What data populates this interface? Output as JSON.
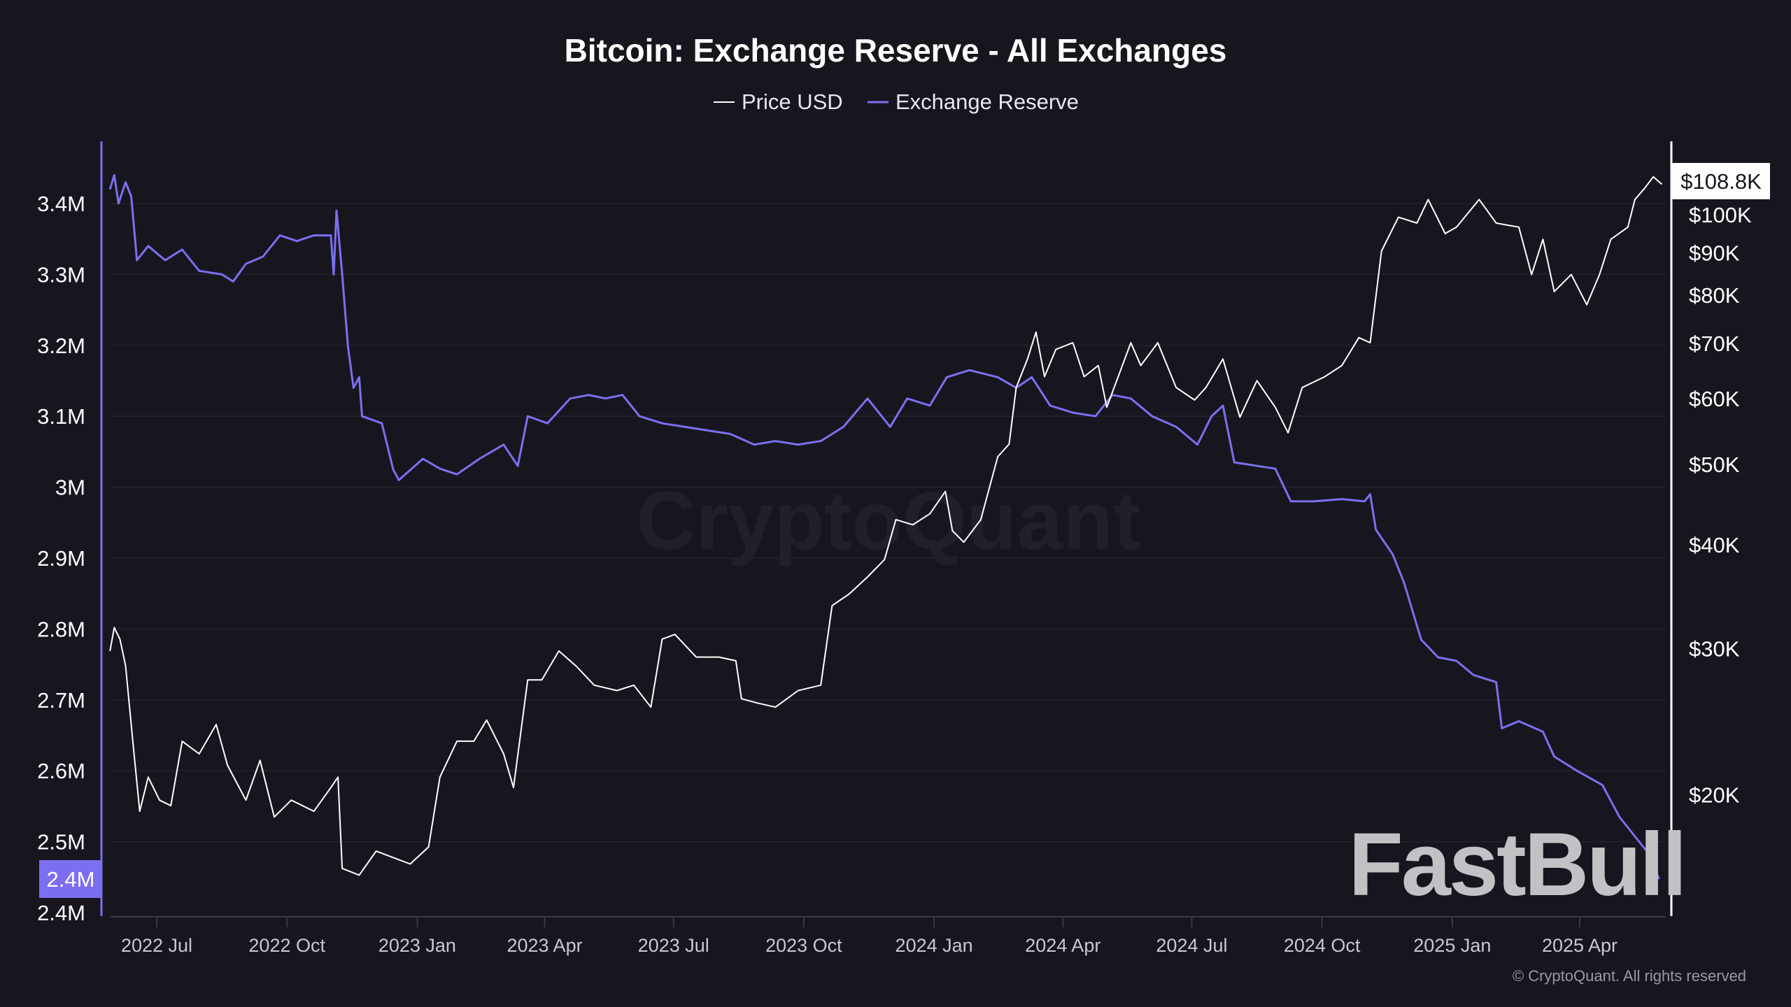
{
  "chart_data": {
    "type": "line",
    "title": "Bitcoin: Exchange Reserve - All Exchanges",
    "legend": {
      "placement": "top-center",
      "entries": [
        "Price USD",
        "Exchange Reserve"
      ]
    },
    "grid": true,
    "x_ticks": [
      "2022 Jul",
      "2022 Oct",
      "2023 Jan",
      "2023 Apr",
      "2023 Jul",
      "2023 Oct",
      "2024 Jan",
      "2024 Apr",
      "2024 Jul",
      "2024 Oct",
      "2025 Jan",
      "2025 Apr"
    ],
    "x_tick_dates": [
      "2022-07-01",
      "2022-10-01",
      "2023-01-01",
      "2023-04-01",
      "2023-07-01",
      "2023-10-01",
      "2024-01-01",
      "2024-04-01",
      "2024-07-01",
      "2024-10-01",
      "2025-01-01",
      "2025-04-01"
    ],
    "xlim": [
      "2022-05-29",
      "2025-05-29"
    ],
    "left_axis": {
      "ticks": [
        "3.4M",
        "3.3M",
        "3.2M",
        "3.1M",
        "3M",
        "2.9M",
        "2.8M",
        "2.7M",
        "2.6M",
        "2.5M",
        "2.4M"
      ],
      "tick_values": [
        3.4,
        3.3,
        3.2,
        3.1,
        3.0,
        2.9,
        2.8,
        2.7,
        2.6,
        2.5,
        2.4
      ],
      "unit": "M BTC",
      "range": [
        2.4,
        3.49
      ],
      "current_label": "2.4M",
      "color": "#7b6ff0"
    },
    "right_axis": {
      "scale": "log",
      "ticks": [
        "$100K",
        "$90K",
        "$80K",
        "$70K",
        "$60K",
        "$50K",
        "$40K",
        "$30K",
        "$20K"
      ],
      "tick_values": [
        100000,
        90000,
        80000,
        70000,
        60000,
        50000,
        40000,
        30000,
        20000
      ],
      "current_label": "$108.8K",
      "color": "#ffffff"
    },
    "series": [
      {
        "name": "Exchange Reserve",
        "axis": "left",
        "color": "#7b6ff0",
        "x": [
          "2022-05-29",
          "2022-06-01",
          "2022-06-04",
          "2022-06-09",
          "2022-06-13",
          "2022-06-17",
          "2022-06-25",
          "2022-07-07",
          "2022-07-19",
          "2022-07-31",
          "2022-08-16",
          "2022-08-24",
          "2022-09-02",
          "2022-09-14",
          "2022-09-26",
          "2022-10-08",
          "2022-10-20",
          "2022-11-01",
          "2022-11-03",
          "2022-11-05",
          "2022-11-09",
          "2022-11-13",
          "2022-11-17",
          "2022-11-21",
          "2022-11-23",
          "2022-12-07",
          "2022-12-15",
          "2022-12-19",
          "2023-01-05",
          "2023-01-17",
          "2023-01-29",
          "2023-02-14",
          "2023-03-03",
          "2023-03-13",
          "2023-03-20",
          "2023-04-03",
          "2023-04-19",
          "2023-05-02",
          "2023-05-14",
          "2023-05-26",
          "2023-06-07",
          "2023-06-23",
          "2023-07-09",
          "2023-07-25",
          "2023-08-10",
          "2023-08-27",
          "2023-09-11",
          "2023-09-27",
          "2023-10-13",
          "2023-10-29",
          "2023-11-15",
          "2023-12-01",
          "2023-12-13",
          "2023-12-29",
          "2024-01-10",
          "2024-01-26",
          "2024-02-15",
          "2024-02-28",
          "2024-03-10",
          "2024-03-23",
          "2024-04-08",
          "2024-04-24",
          "2024-05-06",
          "2024-05-19",
          "2024-06-03",
          "2024-06-20",
          "2024-07-05",
          "2024-07-15",
          "2024-07-23",
          "2024-07-31",
          "2024-08-16",
          "2024-08-29",
          "2024-09-09",
          "2024-09-25",
          "2024-10-15",
          "2024-10-31",
          "2024-11-04",
          "2024-11-08",
          "2024-11-20",
          "2024-11-28",
          "2024-12-10",
          "2024-12-22",
          "2025-01-04",
          "2025-01-16",
          "2025-02-01",
          "2025-02-05",
          "2025-02-17",
          "2025-03-06",
          "2025-03-14",
          "2025-03-30",
          "2025-04-17",
          "2025-04-29",
          "2025-05-09",
          "2025-05-21",
          "2025-05-27"
        ],
        "values": [
          3.42,
          3.44,
          3.4,
          3.43,
          3.41,
          3.32,
          3.34,
          3.32,
          3.335,
          3.305,
          3.3,
          3.29,
          3.315,
          3.325,
          3.355,
          3.347,
          3.355,
          3.355,
          3.3,
          3.39,
          3.3,
          3.2,
          3.14,
          3.155,
          3.1,
          3.09,
          3.025,
          3.01,
          3.04,
          3.026,
          3.018,
          3.04,
          3.06,
          3.03,
          3.1,
          3.09,
          3.125,
          3.13,
          3.125,
          3.13,
          3.1,
          3.09,
          3.085,
          3.08,
          3.075,
          3.06,
          3.065,
          3.06,
          3.065,
          3.085,
          3.125,
          3.085,
          3.125,
          3.115,
          3.155,
          3.165,
          3.155,
          3.14,
          3.155,
          3.115,
          3.105,
          3.1,
          3.13,
          3.125,
          3.1,
          3.085,
          3.06,
          3.1,
          3.115,
          3.035,
          3.03,
          3.026,
          2.98,
          2.98,
          2.983,
          2.98,
          2.99,
          2.94,
          2.905,
          2.865,
          2.785,
          2.76,
          2.755,
          2.735,
          2.725,
          2.66,
          2.67,
          2.655,
          2.62,
          2.6,
          2.58,
          2.535,
          2.51,
          2.48,
          2.447
        ]
      },
      {
        "name": "Price USD",
        "axis": "right",
        "color": "#ffffff",
        "x": [
          "2022-05-29",
          "2022-06-01",
          "2022-06-05",
          "2022-06-09",
          "2022-06-15",
          "2022-06-19",
          "2022-06-25",
          "2022-07-03",
          "2022-07-11",
          "2022-07-19",
          "2022-07-31",
          "2022-08-12",
          "2022-08-20",
          "2022-09-02",
          "2022-09-12",
          "2022-09-22",
          "2022-10-04",
          "2022-10-20",
          "2022-11-01",
          "2022-11-06",
          "2022-11-09",
          "2022-11-21",
          "2022-12-03",
          "2022-12-15",
          "2022-12-27",
          "2023-01-09",
          "2023-01-17",
          "2023-01-29",
          "2023-02-10",
          "2023-02-19",
          "2023-03-03",
          "2023-03-10",
          "2023-03-20",
          "2023-03-30",
          "2023-04-11",
          "2023-04-23",
          "2023-05-06",
          "2023-05-22",
          "2023-06-03",
          "2023-06-15",
          "2023-06-23",
          "2023-07-02",
          "2023-07-17",
          "2023-08-02",
          "2023-08-14",
          "2023-08-18",
          "2023-08-29",
          "2023-09-11",
          "2023-09-27",
          "2023-10-13",
          "2023-10-21",
          "2023-11-02",
          "2023-11-15",
          "2023-11-27",
          "2023-12-05",
          "2023-12-17",
          "2023-12-29",
          "2024-01-09",
          "2024-01-14",
          "2024-01-22",
          "2024-02-03",
          "2024-02-15",
          "2024-02-23",
          "2024-02-28",
          "2024-03-07",
          "2024-03-13",
          "2024-03-19",
          "2024-03-27",
          "2024-04-08",
          "2024-04-16",
          "2024-04-26",
          "2024-05-02",
          "2024-05-19",
          "2024-05-26",
          "2024-06-07",
          "2024-06-20",
          "2024-07-03",
          "2024-07-11",
          "2024-07-23",
          "2024-08-04",
          "2024-08-16",
          "2024-08-29",
          "2024-09-07",
          "2024-09-17",
          "2024-10-03",
          "2024-10-15",
          "2024-10-27",
          "2024-11-04",
          "2024-11-12",
          "2024-11-24",
          "2024-12-07",
          "2024-12-15",
          "2024-12-27",
          "2025-01-04",
          "2025-01-20",
          "2025-02-01",
          "2025-02-17",
          "2025-02-26",
          "2025-03-06",
          "2025-03-14",
          "2025-03-26",
          "2025-04-06",
          "2025-04-15",
          "2025-04-23",
          "2025-05-05",
          "2025-05-10",
          "2025-05-17",
          "2025-05-23",
          "2025-05-29"
        ],
        "values": [
          29800,
          31800,
          30800,
          28600,
          22400,
          19100,
          21000,
          19700,
          19400,
          23200,
          22400,
          24300,
          21700,
          19700,
          22000,
          18800,
          19700,
          19100,
          20400,
          21000,
          16300,
          16000,
          17100,
          16800,
          16500,
          17300,
          21000,
          23200,
          23200,
          24600,
          22400,
          20400,
          27500,
          27500,
          29800,
          28600,
          27100,
          26700,
          27100,
          25500,
          30800,
          31200,
          29300,
          29300,
          29000,
          26100,
          25800,
          25500,
          26700,
          27100,
          33800,
          34900,
          36600,
          38400,
          42900,
          42300,
          43600,
          46400,
          41600,
          40300,
          42900,
          51100,
          52900,
          61900,
          67000,
          72200,
          63800,
          68800,
          70100,
          63800,
          65800,
          58600,
          70100,
          65800,
          70100,
          61900,
          59800,
          61900,
          67000,
          57000,
          63100,
          58600,
          54600,
          61900,
          63800,
          65800,
          71100,
          70100,
          90400,
          99300,
          97700,
          104300,
          94900,
          96600,
          104300,
          97700,
          96600,
          84700,
          93400,
          80800,
          84700,
          77900,
          84700,
          93400,
          96600,
          104300,
          107700,
          111100,
          108800
        ]
      }
    ]
  },
  "watermarks": {
    "center": "CryptoQuant",
    "corner": "FastBull"
  },
  "footer": {
    "copyright": "© CryptoQuant. All rights reserved"
  }
}
